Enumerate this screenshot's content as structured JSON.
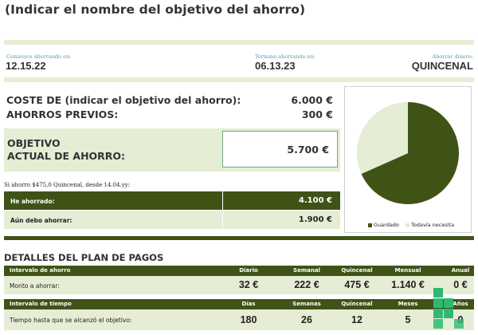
{
  "title": "(Indicar el nombre del objetivo del ahorro)",
  "header": {
    "start_label": "Comience ahorrando en:",
    "start_value": "12.15.22",
    "end_label": "Termine ahorrando en:",
    "end_value": "06.13.23",
    "freq_label": "Ahorrar dinero:",
    "freq_value": "QUINCENAL"
  },
  "summary": {
    "cost_label": "COSTE DE (indicar el objetivo del ahorro):",
    "cost_value": "6.000 €",
    "prev_label": "AHORROS PREVIOS:",
    "prev_value": "300 €",
    "goal_label_1": "OBJETIVO",
    "goal_label_2": "ACTUAL DE AHORRO:",
    "goal_value": "5.700 €",
    "note": "Si ahorro $475,0 Quincenal, desde 14.04.yy:",
    "saved_label": "He ahorrado:",
    "saved_value": "4.100 €",
    "owe_label": "Aún debo ahorrar:",
    "owe_value": "1.900 €"
  },
  "chart_data": {
    "type": "pie",
    "labels": [
      "Guardado",
      "Todavía necesita"
    ],
    "values": [
      4100,
      1900
    ],
    "colors": [
      "#3f5317",
      "#e5edd4"
    ],
    "legend_position": "bottom"
  },
  "plan": {
    "title": "DETALLES DEL PLAN DE PAGOS",
    "interval_header": "Intervalo de ahorro",
    "interval_cols": [
      "Diario",
      "Semanal",
      "Quincenal",
      "Mensual",
      "Anual"
    ],
    "amount_label": "Monto a ahorrar:",
    "amount_values": [
      "32 €",
      "222 €",
      "475 €",
      "1.140 €",
      "0 €"
    ],
    "time_header": "Intervalo de tiempo",
    "time_cols": [
      "Días",
      "Semanas",
      "Quincenal",
      "Meses",
      "Años"
    ],
    "time_label": "Tiempo hasta que se alcanzó el objetivo:",
    "time_values": [
      "180",
      "26",
      "12",
      "5",
      "0"
    ]
  },
  "colors": {
    "dark_green": "#3f5317",
    "light_green": "#e5edd4",
    "label_blue": "#5b9bb0",
    "overlay_green": "#2eb872"
  }
}
